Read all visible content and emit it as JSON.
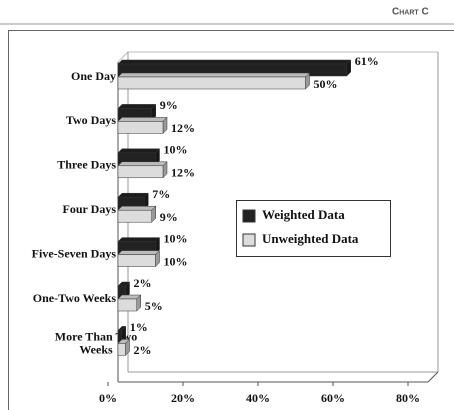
{
  "header": "Chart C",
  "chart_data": {
    "type": "bar3d_horizontal",
    "categories": [
      "One Day",
      "Two Days",
      "Three Days",
      "Four Days",
      "Five-Seven Days",
      "One-Two Weeks",
      "More Than Two Weeks"
    ],
    "series": [
      {
        "name": "Weighted Data",
        "color": "#222222",
        "values": [
          61,
          9,
          10,
          7,
          10,
          2,
          1
        ],
        "value_labels": [
          "61%",
          "9%",
          "10%",
          "7%",
          "10%",
          "2%",
          "1%"
        ]
      },
      {
        "name": "Unweighted Data",
        "color": "#dcdcdc",
        "values": [
          50,
          12,
          12,
          9,
          10,
          5,
          2
        ],
        "value_labels": [
          "50%",
          "12%",
          "12%",
          "9%",
          "10%",
          "5%",
          "2%"
        ]
      }
    ],
    "xlim": [
      0,
      80
    ],
    "xticks": [
      {
        "value": 0,
        "label": "0%"
      },
      {
        "value": 20,
        "label": "20%"
      },
      {
        "value": 40,
        "label": "40%"
      },
      {
        "value": 60,
        "label": "60%"
      },
      {
        "value": 80,
        "label": "80%"
      }
    ],
    "grid": false,
    "legend": "right"
  }
}
